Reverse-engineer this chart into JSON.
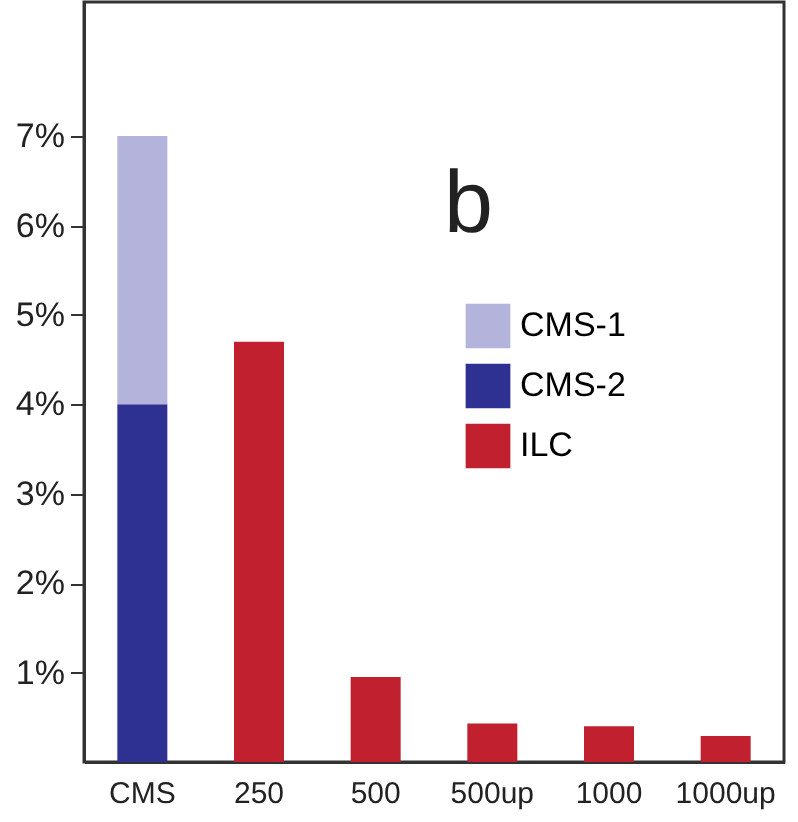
{
  "chart_data": {
    "type": "bar",
    "stacked": true,
    "categories": [
      "CMS",
      "250",
      "500",
      "500up",
      "1000",
      "1000up"
    ],
    "series": [
      {
        "name": "CMS-2",
        "color": "#2e3192",
        "values": [
          4,
          null,
          null,
          null,
          null,
          null
        ]
      },
      {
        "name": "CMS-1",
        "color": "#b3b3dc",
        "values": [
          3,
          null,
          null,
          null,
          null,
          null
        ]
      },
      {
        "name": "ILC",
        "color": "#c1202f",
        "values": [
          null,
          4.7,
          0.95,
          0.43,
          0.4,
          0.29
        ]
      }
    ],
    "ylim": [
      0,
      8.5
    ],
    "yticks": [
      {
        "value": 1,
        "label": "1%"
      },
      {
        "value": 2,
        "label": "2%"
      },
      {
        "value": 3,
        "label": "3%"
      },
      {
        "value": 4,
        "label": "4%"
      },
      {
        "value": 5,
        "label": "5%"
      },
      {
        "value": 6,
        "label": "6%"
      },
      {
        "value": 7,
        "label": "7%"
      }
    ],
    "annotations": [
      "b"
    ],
    "legend": "right",
    "grid": false
  }
}
